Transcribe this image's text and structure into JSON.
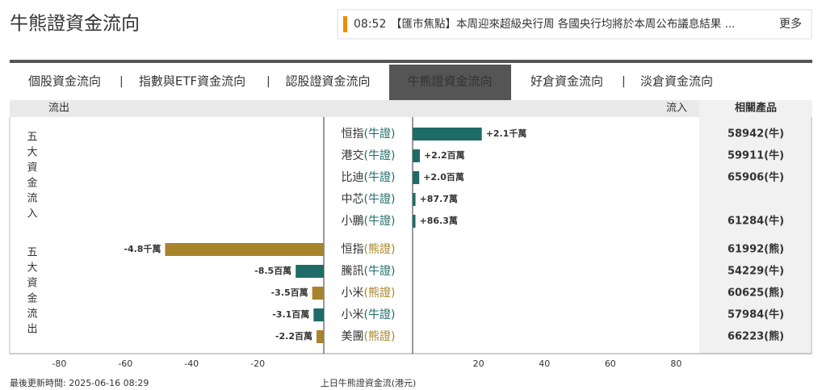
{
  "header": {
    "title": "牛熊證資金流向"
  },
  "news": {
    "time": "08:52",
    "text": "【匯市焦點】本周迎來超級央行周 各國央行均將於本周公布議息結果 ...",
    "more": "更多"
  },
  "tabs": [
    "個股資金流向",
    "指數與ETF資金流向",
    "認股證資金流向",
    "牛熊證資金流向",
    "好倉資金流向",
    "淡倉資金流向"
  ],
  "active_tab": 3,
  "chart_data": {
    "type": "bar",
    "column_headers": {
      "outflow": "流出",
      "inflow": "流入",
      "products": "相關產品"
    },
    "groups": [
      {
        "label": "五大資金流入",
        "rows": [
          {
            "name": "恒指",
            "kind": "(牛證)",
            "color": "#1f6b67",
            "value": 21,
            "value_label": "+2.1千萬",
            "product": "58942(牛)"
          },
          {
            "name": "港交",
            "kind": "(牛證)",
            "color": "#1f6b67",
            "value": 2.2,
            "value_label": "+2.2百萬",
            "product": "59911(牛)"
          },
          {
            "name": "比迪",
            "kind": "(牛證)",
            "color": "#1f6b67",
            "value": 2.0,
            "value_label": "+2.0百萬",
            "product": "65906(牛)"
          },
          {
            "name": "中芯",
            "kind": "(牛證)",
            "color": "#1f6b67",
            "value": 0.877,
            "value_label": "+87.7萬",
            "product": null
          },
          {
            "name": "小鵬",
            "kind": "(牛證)",
            "color": "#1f6b67",
            "value": 0.863,
            "value_label": "+86.3萬",
            "product": "61284(牛)"
          }
        ]
      },
      {
        "label": "五大資金流出",
        "rows": [
          {
            "name": "恒指",
            "kind": "(熊證)",
            "color": "#a8842a",
            "value": -48,
            "value_label": "-4.8千萬",
            "product": "61992(熊)"
          },
          {
            "name": "騰訊",
            "kind": "(牛證)",
            "color": "#1f6b67",
            "value": -8.5,
            "value_label": "-8.5百萬",
            "product": "54229(牛)"
          },
          {
            "name": "小米",
            "kind": "(熊證)",
            "color": "#a8842a",
            "value": -3.5,
            "value_label": "-3.5百萬",
            "product": "60625(熊)"
          },
          {
            "name": "小米",
            "kind": "(牛證)",
            "color": "#1f6b67",
            "value": -3.1,
            "value_label": "-3.1百萬",
            "product": "57984(牛)"
          },
          {
            "name": "美團",
            "kind": "(熊證)",
            "color": "#a8842a",
            "value": -2.2,
            "value_label": "-2.2百萬",
            "product": "66223(熊)"
          }
        ]
      }
    ],
    "xlim": [
      -95,
      87
    ],
    "xticks": [
      -80,
      -60,
      -40,
      -20,
      20,
      40,
      60,
      80
    ],
    "x_label": "上日牛熊證資金流(港元)"
  },
  "footer": {
    "updated": "最後更新時間: 2025-06-16 08:29"
  }
}
